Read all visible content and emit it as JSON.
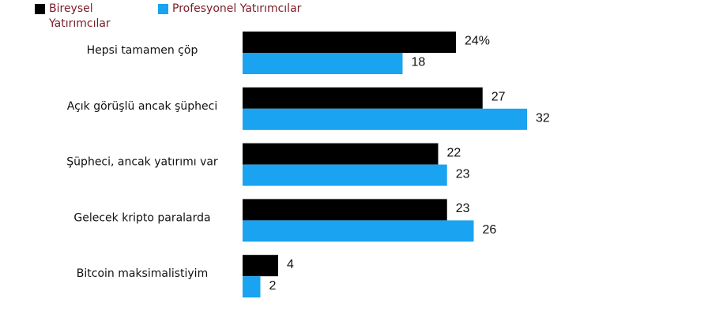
{
  "chart_data": {
    "type": "bar",
    "orientation": "horizontal",
    "categories": [
      "Hepsi tamamen çöp",
      "Açık görüşlü ancak şüpheci",
      "Şüpheci, ancak yatırımı var",
      "Gelecek kripto paralarda",
      "Bitcoin maksimalistiyim"
    ],
    "series": [
      {
        "name": "Bireysel Yatırımcılar",
        "color": "#000000",
        "values": [
          24,
          27,
          22,
          23,
          4
        ],
        "value_labels": [
          "24%",
          "27",
          "22",
          "23",
          "4"
        ]
      },
      {
        "name": "Profesyonel Yatırımcılar",
        "color": "#1aa3f0",
        "values": [
          18,
          32,
          23,
          26,
          2
        ]
      }
    ]
  }
}
